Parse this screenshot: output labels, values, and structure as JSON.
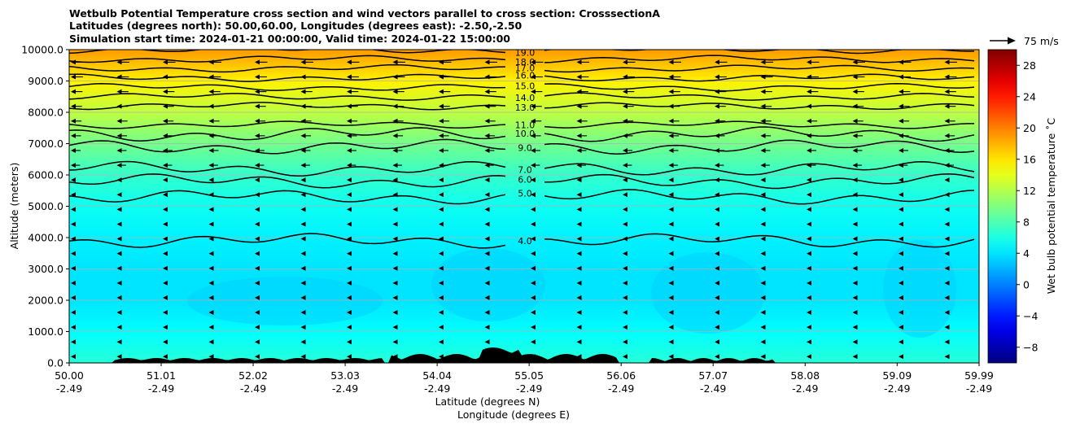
{
  "title": [
    "Wetbulb Potential Temperature cross section and wind vectors parallel to cross section: CrosssectionA",
    "Latitudes (degrees north): 50.00,60.00, Longitudes (degrees east): -2.50,-2.50",
    "Simulation start time: 2024-01-21 00:00:00, Valid time: 2024-01-22 15:00:00"
  ],
  "chart_data": {
    "type": "heatmap",
    "ylabel": "Altitude (meters)",
    "xlabel": "Latitude (degrees N)",
    "xlabel2": "Longitude (degrees E)",
    "ylim": [
      0,
      10000
    ],
    "xlim": [
      50.0,
      59.99
    ],
    "y_ticks": [
      "0.0",
      "1000.0",
      "2000.0",
      "3000.0",
      "4000.0",
      "5000.0",
      "6000.0",
      "7000.0",
      "8000.0",
      "9000.0",
      "10000.0"
    ],
    "y_tick_values": [
      0,
      1000,
      2000,
      3000,
      4000,
      5000,
      6000,
      7000,
      8000,
      9000,
      10000
    ],
    "x_tick_values": [
      50.0,
      51.01,
      52.02,
      53.03,
      54.04,
      55.05,
      56.06,
      57.07,
      58.08,
      59.09,
      59.99
    ],
    "x_ticks_lat": [
      "50.00",
      "51.01",
      "52.02",
      "53.03",
      "54.04",
      "55.05",
      "56.06",
      "57.07",
      "58.08",
      "59.09",
      "59.99"
    ],
    "x_ticks_lon": [
      "-2.49",
      "-2.49",
      "-2.49",
      "-2.49",
      "-2.49",
      "-2.49",
      "-2.49",
      "-2.49",
      "-2.49",
      "-2.49",
      "-2.49"
    ],
    "grid": "horizontal",
    "colorbar": {
      "label": "Wet bulb potential temperature $^\\circ$C",
      "label_display": "Wet bulb potential temperature ˚C",
      "range": [
        -10,
        30
      ],
      "ticks": [
        "28",
        "24",
        "20",
        "16",
        "12",
        "8",
        "4",
        "0",
        "−4",
        "−8"
      ],
      "tick_values": [
        28,
        24,
        20,
        16,
        12,
        8,
        4,
        0,
        -4,
        -8
      ],
      "colormap": "jet"
    },
    "quiver_key": "75 m/s",
    "contour_levels": [
      {
        "label": "4.0",
        "altitude": 3900
      },
      {
        "label": "5.0",
        "altitude": 5300
      },
      {
        "label": "6.0",
        "altitude": 5800
      },
      {
        "label": "7.0",
        "altitude": 6200
      },
      {
        "label": "9.0",
        "altitude": 6900
      },
      {
        "label": "10.0",
        "altitude": 7300
      },
      {
        "label": "11.0",
        "altitude": 7600
      },
      {
        "label": "13.0",
        "altitude": 8200
      },
      {
        "label": "14.0",
        "altitude": 8500
      },
      {
        "label": "15.0",
        "altitude": 8800
      },
      {
        "label": "16.0",
        "altitude": 9100
      },
      {
        "label": "17.0",
        "altitude": 9400
      },
      {
        "label": "18.0",
        "altitude": 9700
      },
      {
        "label": "19.0",
        "altitude": 10000
      }
    ],
    "field_profile": [
      {
        "altitude": 0,
        "value": 6.5
      },
      {
        "altitude": 1000,
        "value": 5
      },
      {
        "altitude": 2000,
        "value": 4
      },
      {
        "altitude": 3000,
        "value": 4
      },
      {
        "altitude": 4000,
        "value": 4.5
      },
      {
        "altitude": 5000,
        "value": 5.5
      },
      {
        "altitude": 6000,
        "value": 7
      },
      {
        "altitude": 7000,
        "value": 9.5
      },
      {
        "altitude": 8000,
        "value": 12.5
      },
      {
        "altitude": 9000,
        "value": 15.5
      },
      {
        "altitude": 10000,
        "value": 19
      }
    ],
    "wind_direction": "towards lower latitude (leftward)"
  }
}
